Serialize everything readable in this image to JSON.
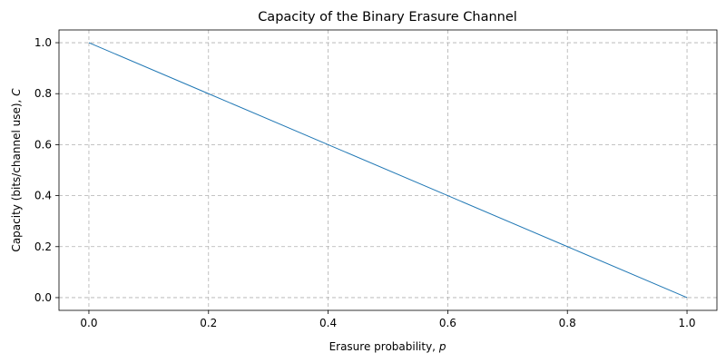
{
  "chart_data": {
    "type": "line",
    "title": "Capacity of the Binary Erasure Channel",
    "xlabel": "Erasure probability, p",
    "xlabel_main": "Erasure probability, ",
    "xlabel_symbol": "p",
    "ylabel": "Capacity (bits/channel use), C",
    "ylabel_main": "Capacity (bits/channel use), ",
    "ylabel_symbol": "C",
    "xlim": [
      -0.05,
      1.05
    ],
    "ylim": [
      -0.05,
      1.05
    ],
    "xticks": [
      "0.0",
      "0.2",
      "0.4",
      "0.6",
      "0.8",
      "1.0"
    ],
    "yticks": [
      "0.0",
      "0.2",
      "0.4",
      "0.6",
      "0.8",
      "1.0"
    ],
    "grid": true,
    "legend": "none",
    "series": [
      {
        "x": [
          0.0,
          0.2,
          0.4,
          0.6,
          0.8,
          1.0
        ],
        "y": [
          1.0,
          0.8,
          0.6,
          0.4,
          0.2,
          0.0
        ],
        "color": "#1f77b4"
      }
    ]
  }
}
